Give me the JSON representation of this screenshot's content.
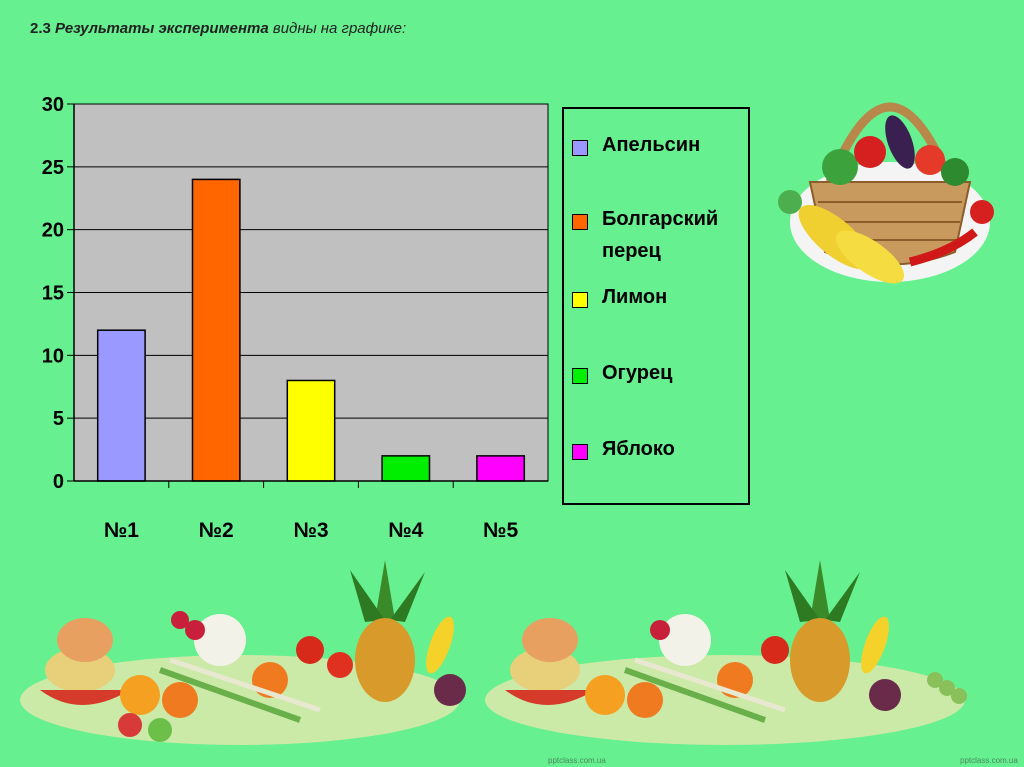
{
  "slide": {
    "title_num": "2.3",
    "title_bold": "Результаты эксперимента",
    "title_rest": "видны на графике:",
    "credit_left": "pptclass.com.ua",
    "credit_right": "pptclass.com.ua"
  },
  "chart_data": {
    "type": "bar",
    "categories": [
      "№1",
      "№2",
      "№3",
      "№4",
      "№5"
    ],
    "values": [
      12,
      24,
      8,
      2,
      2
    ],
    "colors": [
      "#9999ff",
      "#ff6600",
      "#ffff00",
      "#00ee00",
      "#ff00ff"
    ],
    "legend": [
      "Апельсин",
      "Болгарский перец",
      "Лимон",
      "Огурец",
      "Яблоко"
    ],
    "ylim": [
      0,
      30
    ],
    "yticks": [
      0,
      5,
      10,
      15,
      20,
      25,
      30
    ],
    "grid": true,
    "plot_background": "#c0c0c0",
    "legend_position": "right"
  }
}
